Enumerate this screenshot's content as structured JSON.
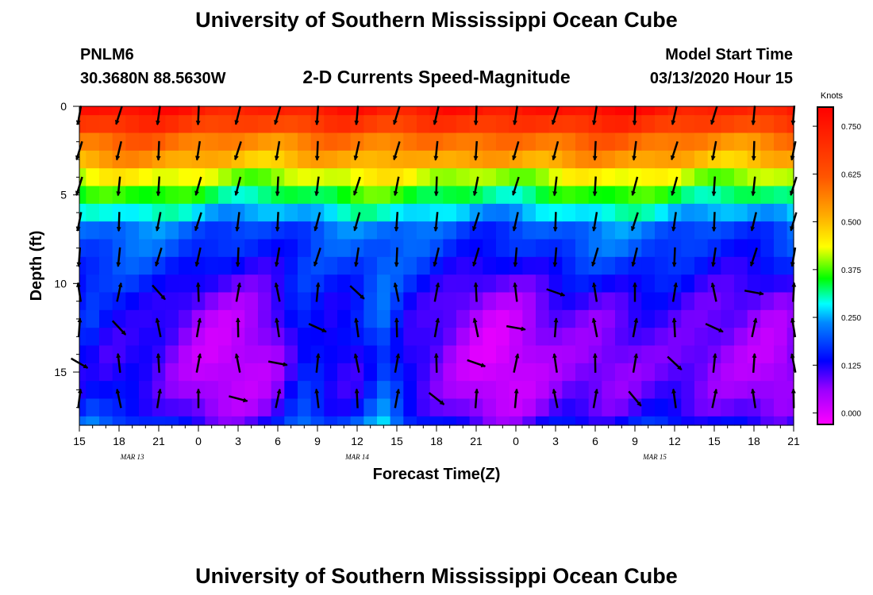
{
  "header": {
    "title": "University of Southern Mississippi Ocean Cube",
    "station": "PNLM6",
    "coords": "30.3680N 88.5630W",
    "plot_title": "2-D Currents Speed-Magnitude",
    "start_label": "Model Start Time",
    "start_value": "03/13/2020 Hour 15"
  },
  "footer": {
    "title": "University of Southern Mississippi Ocean Cube"
  },
  "chart_data": {
    "type": "heatmap",
    "title": "2-D Currents Speed-Magnitude",
    "xlabel": "Forecast Time(Z)",
    "ylabel": "Depth (ft)",
    "x_tick_labels": [
      "15",
      "18",
      "21",
      "0",
      "3",
      "6",
      "9",
      "12",
      "15",
      "18",
      "21",
      "0",
      "3",
      "6",
      "9",
      "12",
      "15",
      "18",
      "21"
    ],
    "x_range_hours": [
      0,
      54
    ],
    "date_labels": [
      {
        "text": "MAR  13",
        "hour": 4
      },
      {
        "text": "MAR  14",
        "hour": 21
      },
      {
        "text": "MAR  15",
        "hour": 43.5
      }
    ],
    "y_tick_labels": [
      "0",
      "5",
      "10",
      "15"
    ],
    "y_ticks": [
      0,
      5,
      10,
      15
    ],
    "ylim": [
      0,
      18
    ],
    "colorbar": {
      "unit": "Knots",
      "range": [
        -0.03,
        0.8
      ],
      "tick_labels": [
        "0.000",
        "0.125",
        "0.250",
        "0.375",
        "0.500",
        "0.625",
        "0.750"
      ],
      "tick_values": [
        0,
        0.125,
        0.25,
        0.375,
        0.5,
        0.625,
        0.75
      ],
      "colormap": [
        "#ff00ff",
        "#9900ff",
        "#0000ff",
        "#0088ff",
        "#00ffff",
        "#00ff00",
        "#ffff00",
        "#ffaa00",
        "#ff5500",
        "#ff0000"
      ]
    },
    "grid": {
      "n_time": 55,
      "depth_levels": [
        0,
        1,
        2,
        3,
        4,
        5,
        6,
        7,
        8,
        9,
        10,
        11,
        12,
        13,
        14,
        15,
        16,
        17,
        18
      ]
    },
    "speed_profile_knots": [
      0.75,
      0.68,
      0.58,
      0.52,
      0.42,
      0.34,
      0.27,
      0.2,
      0.18,
      0.16,
      0.14,
      0.12,
      0.11,
      0.1,
      0.09,
      0.09,
      0.1,
      0.12,
      0.16
    ],
    "arrow_columns_hours": [
      0,
      3,
      6,
      9,
      12,
      15,
      18,
      21,
      24,
      27,
      30,
      33,
      36,
      39,
      42,
      45,
      48,
      51,
      54
    ],
    "arrow_depths_ft": [
      0.5,
      2.5,
      4.5,
      6.5,
      8.5,
      10.5,
      12.5,
      14.5,
      16.5
    ]
  }
}
